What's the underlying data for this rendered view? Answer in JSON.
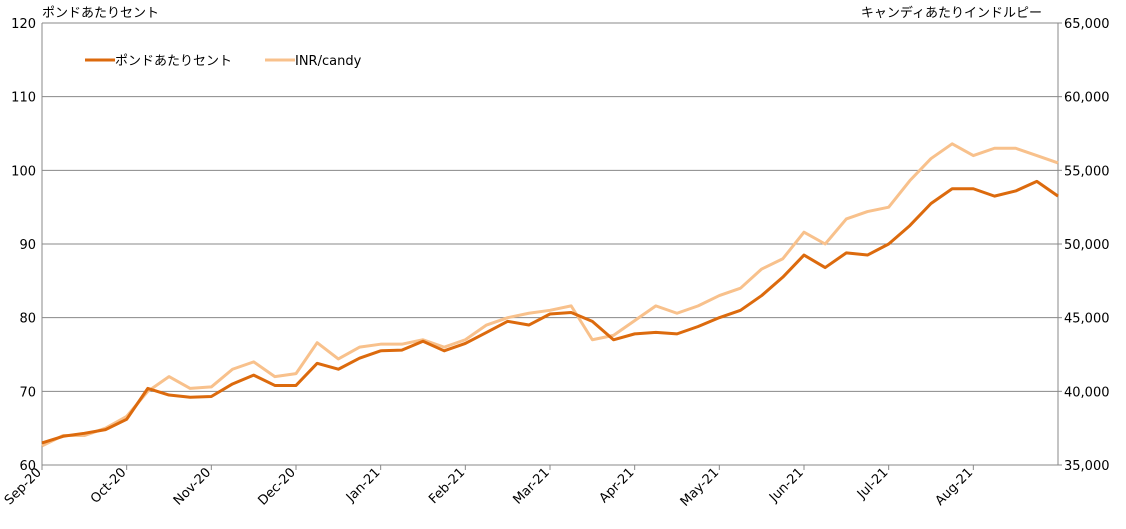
{
  "chart_data": {
    "type": "line",
    "y_axis_label": "ポンドあたりセント",
    "y2_axis_label": "キャンディあたりインドルピー",
    "categories": [
      "Sep-20",
      null,
      null,
      null,
      "Oct-20",
      null,
      null,
      null,
      "Nov-20",
      null,
      null,
      null,
      "Dec-20",
      null,
      null,
      null,
      "Jan-21",
      null,
      null,
      null,
      "Feb-21",
      null,
      null,
      null,
      "Mar-21",
      null,
      null,
      null,
      "Apr-21",
      null,
      null,
      null,
      "May-21",
      null,
      null,
      null,
      "Jun-21",
      null,
      null,
      null,
      "Jul-21",
      null,
      null,
      null,
      "Aug-21",
      null,
      null,
      null,
      null
    ],
    "series": [
      {
        "name": "ポンドあたりセント",
        "color": "#dc6a0d",
        "values": [
          63,
          63.9,
          64.3,
          64.8,
          66.2,
          70.4,
          69.5,
          69.2,
          69.3,
          71,
          72.2,
          70.8,
          70.8,
          73.8,
          73,
          74.5,
          75.5,
          75.6,
          76.8,
          75.5,
          76.5,
          78,
          79.5,
          79,
          80.5,
          80.7,
          79.5,
          77,
          77.8,
          78,
          77.8,
          78.8,
          80,
          81,
          83,
          85.5,
          88.5,
          86.8,
          88.8,
          88.5,
          90,
          92.5,
          95.5,
          97.5,
          97.5,
          96.5,
          97.2,
          98.5,
          96.5
        ]
      },
      {
        "name": "INR/candy",
        "color": "#f8c18c",
        "axis": "y2",
        "values": [
          36300,
          37000,
          37000,
          37500,
          38300,
          40000,
          41000,
          40200,
          40300,
          41500,
          42000,
          41000,
          41200,
          43300,
          42200,
          43000,
          43200,
          43200,
          43500,
          43000,
          43500,
          44500,
          45000,
          45300,
          45500,
          45800,
          43500,
          43800,
          44800,
          45800,
          45300,
          45800,
          46500,
          47000,
          48300,
          49000,
          50800,
          50000,
          51700,
          52200,
          52500,
          54300,
          55800,
          56800,
          56000,
          56500,
          56500,
          56000,
          55500
        ]
      }
    ],
    "ylim": [
      60,
      120
    ],
    "yticks": [
      60,
      70,
      80,
      90,
      100,
      110,
      120
    ],
    "y2lim": [
      35000,
      65000
    ],
    "y2ticks": [
      {
        "value": 35000,
        "label": "35,000"
      },
      {
        "value": 40000,
        "label": "40,000"
      },
      {
        "value": 45000,
        "label": "45,000"
      },
      {
        "value": 50000,
        "label": "50,000"
      },
      {
        "value": 55000,
        "label": "55,000"
      },
      {
        "value": 60000,
        "label": "60,000"
      },
      {
        "value": 65000,
        "label": "65,000"
      }
    ],
    "grid": true,
    "legend": "top-left"
  }
}
